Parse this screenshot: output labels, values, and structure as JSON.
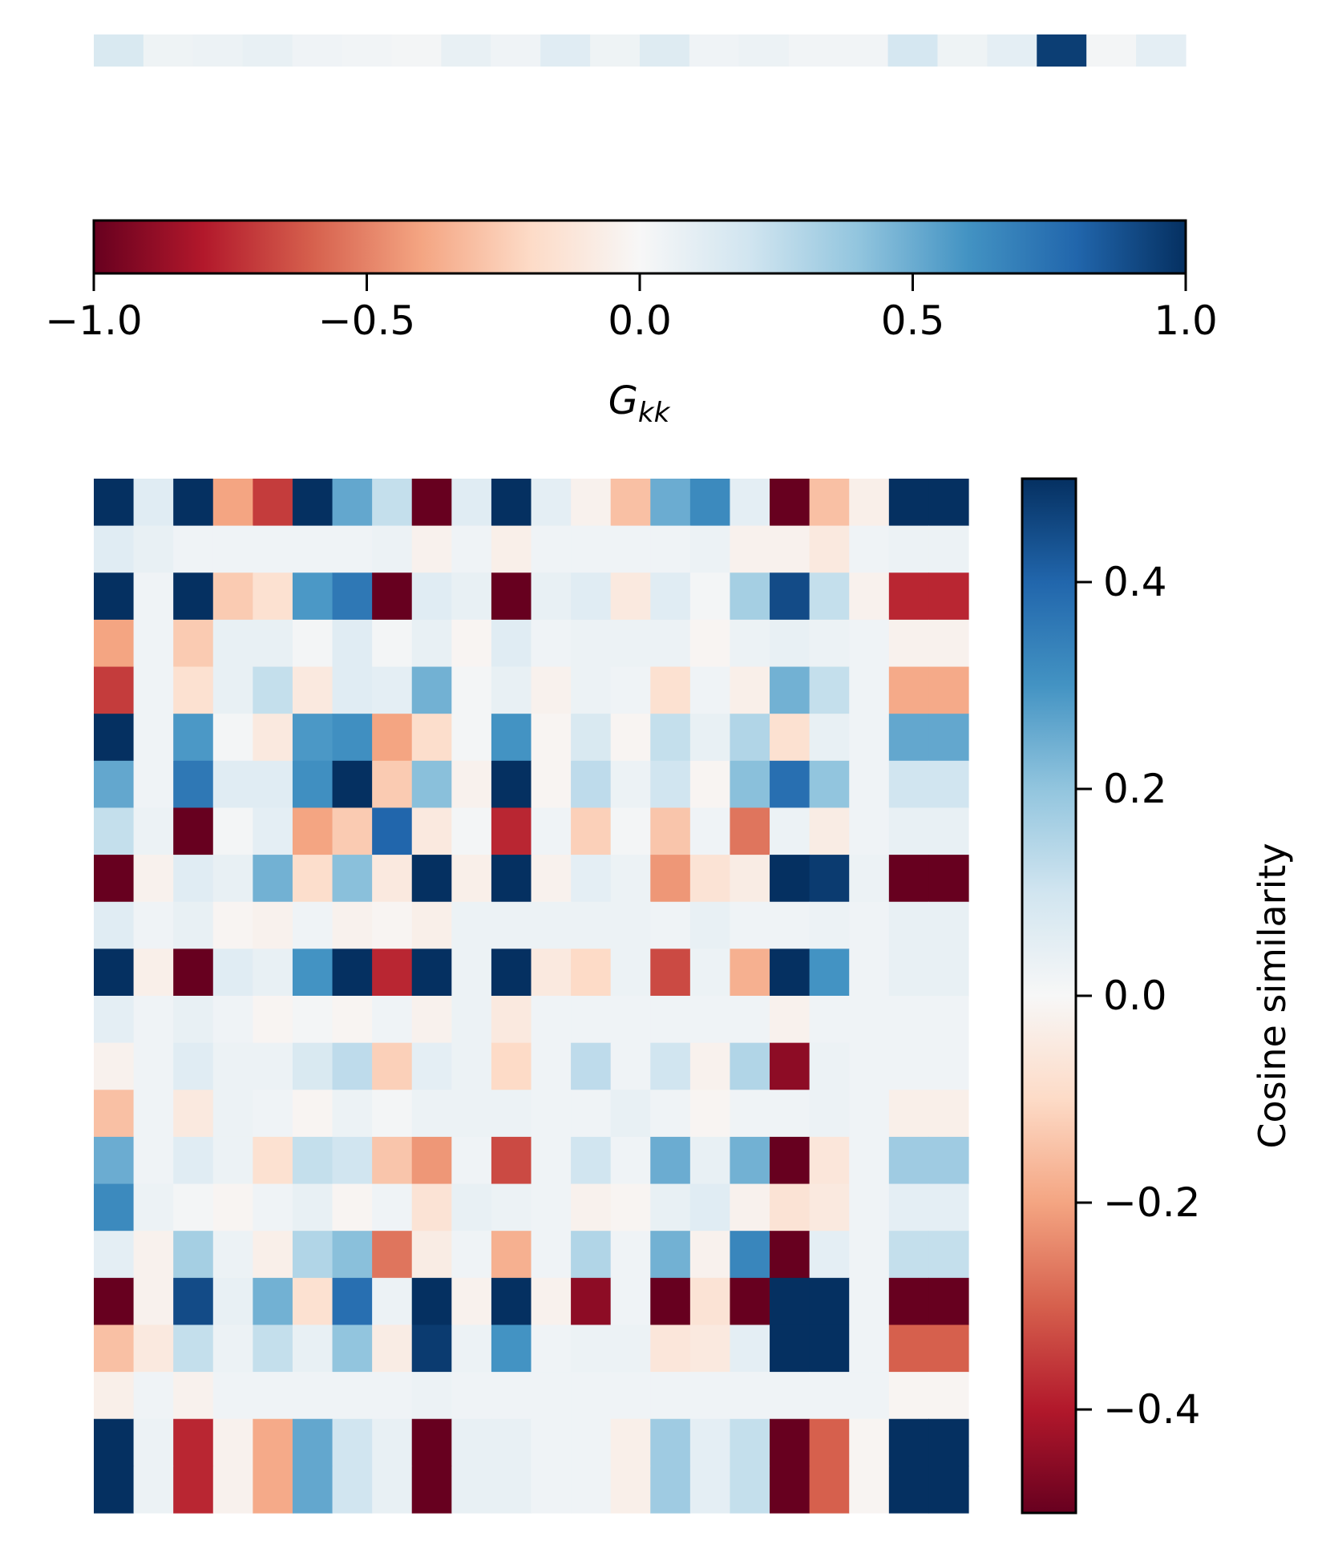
{
  "chart_data": [
    {
      "type": "heatmap",
      "name": "gkk-strip",
      "values": [
        [
          0.16,
          0.05,
          0.06,
          0.08,
          0.04,
          0.03,
          0.02,
          0.08,
          0.04,
          0.12,
          0.05,
          0.13,
          0.04,
          0.06,
          0.03,
          0.03,
          0.18,
          0.05,
          0.1,
          0.95,
          0.02,
          0.1
        ]
      ],
      "vmin": -1.0,
      "vmax": 1.0,
      "colormap": "RdBu"
    },
    {
      "type": "colorbar",
      "name": "gkk-colorbar",
      "orientation": "horizontal",
      "vmin": -1.0,
      "vmax": 1.0,
      "ticks": [
        -1.0,
        -0.5,
        0.0,
        0.5,
        1.0
      ],
      "tick_labels": [
        "−1.0",
        "−0.5",
        "0.0",
        "0.5",
        "1.0"
      ],
      "label_main": "G",
      "label_sub": "kk"
    },
    {
      "type": "heatmap",
      "name": "cosine-similarity-matrix",
      "rows": 22,
      "cols": 22,
      "vmin": -0.5,
      "vmax": 0.5,
      "colormap": "RdBu",
      "values": [
        [
          0.5,
          0.06,
          0.5,
          -0.2,
          -0.35,
          0.5,
          0.26,
          0.12,
          -0.5,
          0.06,
          0.5,
          0.05,
          -0.02,
          -0.15,
          0.25,
          0.32,
          0.05,
          -0.5,
          -0.15,
          -0.03,
          0.5,
          0.5
        ],
        [
          0.06,
          0.04,
          0.02,
          0.02,
          0.02,
          0.02,
          0.02,
          0.03,
          -0.02,
          0.02,
          -0.03,
          0.02,
          0.02,
          0.02,
          0.02,
          0.03,
          -0.02,
          -0.02,
          -0.05,
          0.02,
          0.03,
          0.03
        ],
        [
          0.5,
          0.02,
          0.5,
          -0.13,
          -0.08,
          0.29,
          0.36,
          -0.5,
          0.06,
          0.04,
          -0.5,
          0.04,
          0.06,
          -0.05,
          0.06,
          0.01,
          0.17,
          0.45,
          0.12,
          -0.02,
          -0.38,
          -0.38
        ],
        [
          -0.2,
          0.02,
          -0.13,
          0.04,
          0.04,
          0.01,
          0.06,
          0.01,
          0.04,
          -0.01,
          0.06,
          0.02,
          0.03,
          0.03,
          0.03,
          -0.01,
          0.03,
          0.04,
          0.03,
          0.02,
          -0.02,
          -0.02
        ],
        [
          -0.35,
          0.02,
          -0.08,
          0.04,
          0.12,
          -0.05,
          0.06,
          0.05,
          0.24,
          0.01,
          0.04,
          -0.02,
          0.03,
          0.02,
          -0.08,
          0.02,
          -0.03,
          0.24,
          0.12,
          0.02,
          -0.19,
          -0.19
        ],
        [
          0.5,
          0.02,
          0.29,
          0.01,
          -0.05,
          0.29,
          0.31,
          -0.2,
          -0.09,
          0.01,
          0.3,
          -0.01,
          0.08,
          -0.01,
          0.12,
          0.04,
          0.15,
          -0.08,
          0.04,
          0.02,
          0.26,
          0.26
        ],
        [
          0.26,
          0.02,
          0.36,
          0.06,
          0.06,
          0.31,
          0.5,
          -0.13,
          0.21,
          -0.02,
          0.5,
          -0.01,
          0.13,
          0.03,
          0.1,
          -0.01,
          0.21,
          0.38,
          0.2,
          0.02,
          0.1,
          0.1
        ],
        [
          0.12,
          0.03,
          -0.5,
          0.01,
          0.05,
          -0.2,
          -0.13,
          0.4,
          -0.05,
          0.01,
          -0.38,
          0.02,
          -0.12,
          0.01,
          -0.14,
          0.02,
          -0.27,
          0.03,
          -0.04,
          0.02,
          0.04,
          0.04
        ],
        [
          -0.5,
          -0.02,
          0.06,
          0.04,
          0.24,
          -0.09,
          0.21,
          -0.05,
          0.5,
          -0.03,
          0.5,
          -0.02,
          0.05,
          0.03,
          -0.22,
          -0.07,
          -0.04,
          0.5,
          0.48,
          0.03,
          -0.5,
          -0.5
        ],
        [
          0.06,
          0.02,
          0.04,
          -0.01,
          -0.02,
          0.02,
          -0.02,
          -0.01,
          -0.03,
          0.03,
          0.03,
          0.03,
          0.03,
          0.03,
          0.02,
          0.04,
          0.02,
          0.02,
          0.03,
          0.02,
          0.04,
          0.04
        ],
        [
          0.5,
          -0.03,
          -0.5,
          0.06,
          0.04,
          0.3,
          0.5,
          -0.38,
          0.5,
          0.03,
          0.5,
          -0.05,
          -0.1,
          0.03,
          -0.33,
          0.03,
          -0.18,
          0.5,
          0.3,
          0.02,
          0.04,
          0.04
        ],
        [
          0.05,
          0.02,
          0.04,
          0.02,
          -0.01,
          0.01,
          -0.01,
          0.02,
          -0.02,
          0.03,
          -0.05,
          0.02,
          0.02,
          0.02,
          0.02,
          0.02,
          0.02,
          -0.02,
          0.02,
          0.02,
          0.02,
          0.02
        ],
        [
          -0.02,
          0.02,
          0.06,
          0.03,
          0.03,
          0.08,
          0.13,
          -0.12,
          0.05,
          0.03,
          -0.1,
          0.02,
          0.13,
          0.02,
          0.1,
          -0.02,
          0.15,
          -0.45,
          0.03,
          0.02,
          0.02,
          0.02
        ],
        [
          -0.15,
          0.02,
          -0.05,
          0.03,
          0.02,
          -0.01,
          0.03,
          0.01,
          0.03,
          0.03,
          0.03,
          0.02,
          0.02,
          0.04,
          0.02,
          -0.01,
          0.02,
          0.02,
          0.03,
          0.02,
          -0.03,
          -0.03
        ],
        [
          0.25,
          0.02,
          0.06,
          0.03,
          -0.08,
          0.12,
          0.1,
          -0.14,
          -0.22,
          0.02,
          -0.33,
          0.02,
          0.1,
          0.02,
          0.25,
          0.04,
          0.24,
          -0.5,
          -0.06,
          0.02,
          0.18,
          0.18
        ],
        [
          0.32,
          0.03,
          0.01,
          -0.01,
          0.02,
          0.04,
          -0.01,
          0.02,
          -0.07,
          0.04,
          0.03,
          0.02,
          -0.02,
          -0.01,
          0.04,
          0.06,
          -0.02,
          -0.07,
          -0.05,
          0.02,
          0.05,
          0.05
        ],
        [
          0.05,
          -0.02,
          0.17,
          0.03,
          -0.03,
          0.15,
          0.21,
          -0.27,
          -0.04,
          0.02,
          -0.18,
          0.02,
          0.15,
          0.02,
          0.24,
          -0.02,
          0.33,
          -0.5,
          0.05,
          0.02,
          0.12,
          0.12
        ],
        [
          -0.5,
          -0.02,
          0.45,
          0.04,
          0.24,
          -0.08,
          0.38,
          0.03,
          0.5,
          -0.02,
          0.5,
          -0.02,
          -0.45,
          0.02,
          -0.5,
          -0.07,
          -0.5,
          0.5,
          0.5,
          0.02,
          -0.5,
          -0.5
        ],
        [
          -0.15,
          -0.05,
          0.12,
          0.03,
          0.12,
          0.04,
          0.2,
          -0.04,
          0.48,
          0.03,
          0.3,
          0.02,
          0.03,
          0.03,
          -0.06,
          -0.05,
          0.05,
          0.5,
          0.5,
          0.02,
          -0.3,
          -0.3
        ],
        [
          -0.03,
          0.02,
          -0.02,
          0.02,
          0.02,
          0.02,
          0.02,
          0.02,
          0.03,
          0.02,
          0.02,
          0.02,
          0.02,
          0.02,
          0.02,
          0.02,
          0.02,
          0.02,
          0.02,
          0.02,
          -0.01,
          -0.01
        ],
        [
          0.5,
          0.03,
          -0.38,
          -0.02,
          -0.19,
          0.26,
          0.1,
          0.04,
          -0.5,
          0.04,
          0.04,
          0.02,
          0.02,
          -0.03,
          0.18,
          0.05,
          0.12,
          -0.5,
          -0.3,
          -0.01,
          0.5,
          0.5
        ],
        [
          0.5,
          0.03,
          -0.38,
          -0.02,
          -0.19,
          0.26,
          0.1,
          0.04,
          -0.5,
          0.04,
          0.04,
          0.02,
          0.02,
          -0.03,
          0.18,
          0.05,
          0.12,
          -0.5,
          -0.3,
          -0.01,
          0.5,
          0.5
        ]
      ]
    },
    {
      "type": "colorbar",
      "name": "cosine-colorbar",
      "orientation": "vertical",
      "vmin": -0.5,
      "vmax": 0.5,
      "ticks": [
        0.4,
        0.2,
        0.0,
        -0.2,
        -0.4
      ],
      "tick_labels": [
        "0.4",
        "0.2",
        "0.0",
        "−0.2",
        "−0.4"
      ],
      "label": "Cosine similarity"
    }
  ]
}
